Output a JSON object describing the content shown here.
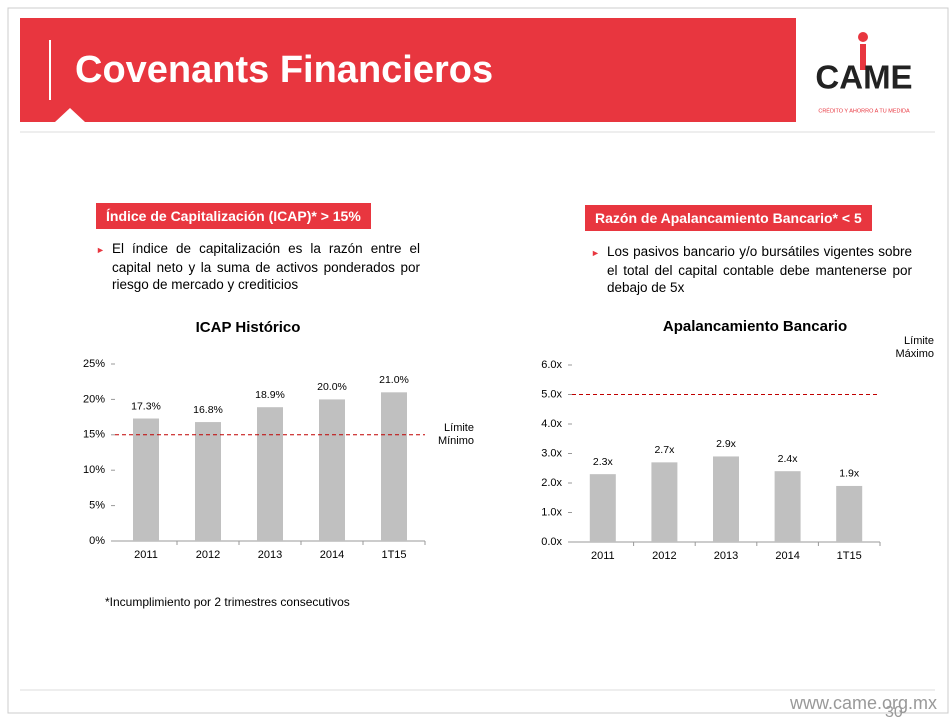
{
  "header": {
    "title": "Covenants Financieros",
    "logo": "CAME",
    "tagline": "CRÉDITO Y AHORRO A TU MEDIDA"
  },
  "sections": [
    {
      "heading": "Índice de Capitalización (ICAP)* > 15%",
      "bullet": "El índice de capitalización es la razón entre el capital neto y la suma de activos ponderados por riesgo de mercado y crediticios"
    },
    {
      "heading": "Razón de Apalancamiento Bancario* < 5",
      "bullet": "Los pasivos bancario y/o bursátiles vigentes sobre el total del capital contable debe mantenerse por debajo de 5x"
    }
  ],
  "chart_data": [
    {
      "type": "bar",
      "title": "ICAP Histórico",
      "categories": [
        "2011",
        "2012",
        "2013",
        "2014",
        "1T15"
      ],
      "values": [
        17.3,
        16.8,
        18.9,
        20.0,
        21.0
      ],
      "value_labels": [
        "17.3%",
        "16.8%",
        "18.9%",
        "20.0%",
        "21.0%"
      ],
      "color": "#c0c0c0",
      "ylim": [
        0,
        25
      ],
      "yticks": [
        {
          "value": 0,
          "label": "0%"
        },
        {
          "value": 5,
          "label": "5%"
        },
        {
          "value": 10,
          "label": "10%"
        },
        {
          "value": 15,
          "label": "15%"
        },
        {
          "value": 20,
          "label": "20%"
        },
        {
          "value": 25,
          "label": "25%"
        }
      ],
      "reference_line": {
        "value": 15,
        "label": "Límite Mínimo",
        "color": "#c00000"
      }
    },
    {
      "type": "bar",
      "title": "Apalancamiento Bancario",
      "categories": [
        "2011",
        "2012",
        "2013",
        "2014",
        "1T15"
      ],
      "values": [
        2.3,
        2.7,
        2.9,
        2.4,
        1.9
      ],
      "value_labels": [
        "2.3x",
        "2.7x",
        "2.9x",
        "2.4x",
        "1.9x"
      ],
      "color": "#c0c0c0",
      "ylim": [
        0,
        6
      ],
      "yticks": [
        {
          "value": 0,
          "label": "0.0x"
        },
        {
          "value": 1,
          "label": "1.0x"
        },
        {
          "value": 2,
          "label": "2.0x"
        },
        {
          "value": 3,
          "label": "3.0x"
        },
        {
          "value": 4,
          "label": "4.0x"
        },
        {
          "value": 5,
          "label": "5.0x"
        },
        {
          "value": 6,
          "label": "6.0x"
        }
      ],
      "reference_line": {
        "value": 5,
        "label": "Límite Máximo",
        "color": "#c00000"
      }
    }
  ],
  "footnote": "*Incumplimiento por 2 trimestres consecutivos",
  "footer": {
    "url": "www.came.org.mx",
    "page": "30"
  }
}
